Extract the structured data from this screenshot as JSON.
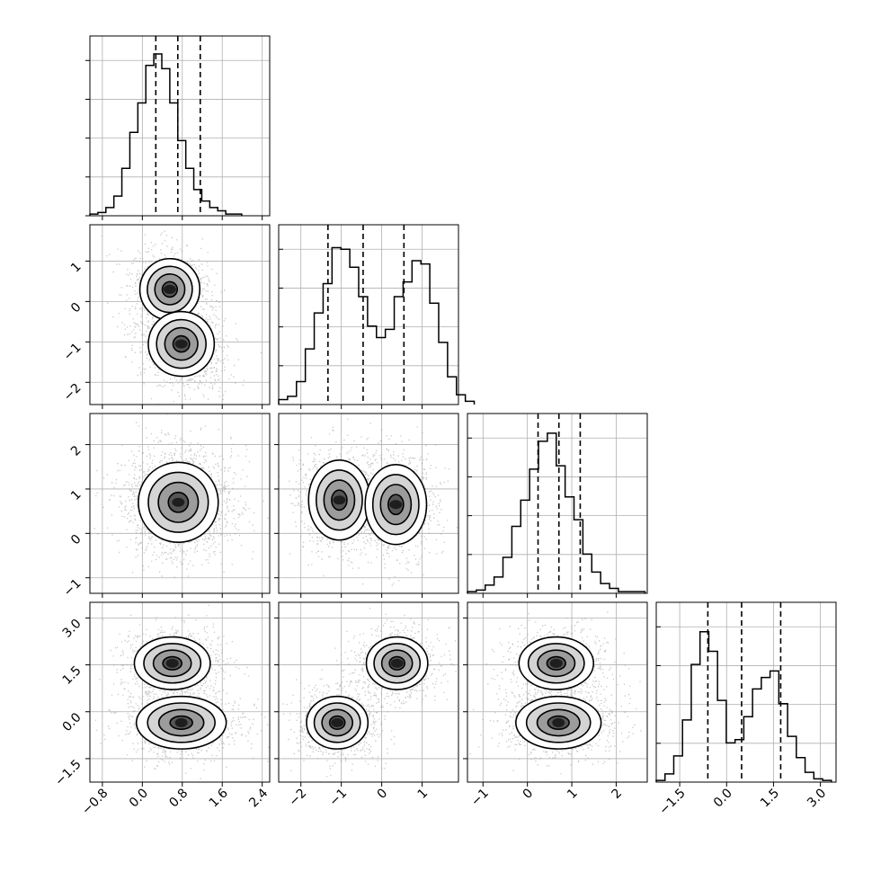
{
  "chart_data": {
    "type": "corner",
    "grid": true,
    "colors": {
      "background": "#ffffff",
      "ink": "#000000",
      "grid": "#b0b0b0",
      "scatter": "#9a9a9a"
    },
    "params": [
      {
        "range": [
          -1.05,
          2.55
        ],
        "ticks": [
          -0.8,
          0.0,
          0.8,
          1.6,
          2.4
        ],
        "tick_labels": [
          "−0.8",
          "0.0",
          "0.8",
          "1.6",
          "2.4"
        ],
        "quantiles": [
          0.27,
          0.71,
          1.16
        ],
        "hist": {
          "bin_start": -1.05,
          "bin_width": 0.16,
          "counts": [
            0.01,
            0.02,
            0.05,
            0.12,
            0.29,
            0.51,
            0.69,
            0.92,
            0.99,
            0.9,
            0.69,
            0.46,
            0.29,
            0.16,
            0.09,
            0.05,
            0.03,
            0.01,
            0.01
          ],
          "ymax": 1.0
        }
      },
      {
        "range": [
          -2.55,
          1.9
        ],
        "ticks": [
          -2,
          -1,
          0,
          1
        ],
        "tick_labels": [
          "−2",
          "−1",
          "0",
          "1"
        ],
        "quantiles": [
          -1.33,
          -0.46,
          0.55
        ],
        "hist": {
          "bin_start": -2.55,
          "bin_width": 0.22,
          "counts": [
            0.03,
            0.05,
            0.14,
            0.34,
            0.56,
            0.74,
            0.96,
            0.95,
            0.84,
            0.66,
            0.48,
            0.41,
            0.46,
            0.66,
            0.75,
            0.88,
            0.86,
            0.62,
            0.38,
            0.17,
            0.06,
            0.02
          ],
          "ymax": 1.0
        }
      },
      {
        "range": [
          -1.35,
          2.7
        ],
        "ticks": [
          -1,
          0,
          1,
          2
        ],
        "tick_labels": [
          "−1",
          "0",
          "1",
          "2"
        ],
        "quantiles": [
          0.24,
          0.71,
          1.19
        ],
        "hist": {
          "bin_start": -1.35,
          "bin_width": 0.2,
          "counts": [
            0.01,
            0.02,
            0.05,
            0.1,
            0.22,
            0.41,
            0.57,
            0.76,
            0.93,
            0.98,
            0.78,
            0.59,
            0.45,
            0.24,
            0.13,
            0.06,
            0.03,
            0.01,
            0.01,
            0.01
          ],
          "ymax": 1.0
        }
      },
      {
        "range": [
          -2.25,
          3.5
        ],
        "ticks": [
          -1.5,
          0.0,
          1.5,
          3.0
        ],
        "tick_labels": [
          "−1.5",
          "0.0",
          "1.5",
          "3.0"
        ],
        "quantiles": [
          -0.6,
          0.48,
          1.73
        ],
        "hist": {
          "bin_start": -2.25,
          "bin_width": 0.28,
          "counts": [
            0.01,
            0.05,
            0.16,
            0.38,
            0.72,
            0.92,
            0.8,
            0.5,
            0.24,
            0.26,
            0.4,
            0.57,
            0.64,
            0.68,
            0.48,
            0.28,
            0.15,
            0.06,
            0.02,
            0.01
          ],
          "ymax": 1.0
        }
      }
    ],
    "pairs": [
      {
        "x": 0,
        "y": 1,
        "modes": [
          {
            "mx": 0.55,
            "my": 0.3,
            "sx": 0.3,
            "sy": 0.38,
            "rho": -0.15,
            "w": 0.45
          },
          {
            "mx": 0.78,
            "my": -1.05,
            "sx": 0.33,
            "sy": 0.4,
            "rho": -0.2,
            "w": 0.55
          }
        ]
      },
      {
        "x": 0,
        "y": 2,
        "modes": [
          {
            "mx": 0.72,
            "my": 0.7,
            "sx": 0.4,
            "sy": 0.45,
            "rho": 0.0,
            "w": 1.0
          }
        ]
      },
      {
        "x": 1,
        "y": 2,
        "modes": [
          {
            "mx": -1.05,
            "my": 0.75,
            "sx": 0.38,
            "sy": 0.45,
            "rho": 0.0,
            "w": 0.5
          },
          {
            "mx": 0.35,
            "my": 0.65,
            "sx": 0.38,
            "sy": 0.45,
            "rho": 0.0,
            "w": 0.5
          }
        ]
      },
      {
        "x": 0,
        "y": 3,
        "modes": [
          {
            "mx": 0.6,
            "my": 1.55,
            "sx": 0.38,
            "sy": 0.42,
            "rho": 0.0,
            "w": 0.45
          },
          {
            "mx": 0.78,
            "my": -0.35,
            "sx": 0.45,
            "sy": 0.42,
            "rho": 0.0,
            "w": 0.55
          }
        ]
      },
      {
        "x": 1,
        "y": 3,
        "modes": [
          {
            "mx": -1.1,
            "my": -0.35,
            "sx": 0.38,
            "sy": 0.42,
            "rho": 0.0,
            "w": 0.5
          },
          {
            "mx": 0.38,
            "my": 1.55,
            "sx": 0.38,
            "sy": 0.42,
            "rho": 0.0,
            "w": 0.5
          }
        ]
      },
      {
        "x": 2,
        "y": 3,
        "modes": [
          {
            "mx": 0.65,
            "my": 1.55,
            "sx": 0.42,
            "sy": 0.42,
            "rho": 0.0,
            "w": 0.45
          },
          {
            "mx": 0.7,
            "my": -0.35,
            "sx": 0.48,
            "sy": 0.42,
            "rho": 0.0,
            "w": 0.55
          }
        ]
      }
    ]
  }
}
